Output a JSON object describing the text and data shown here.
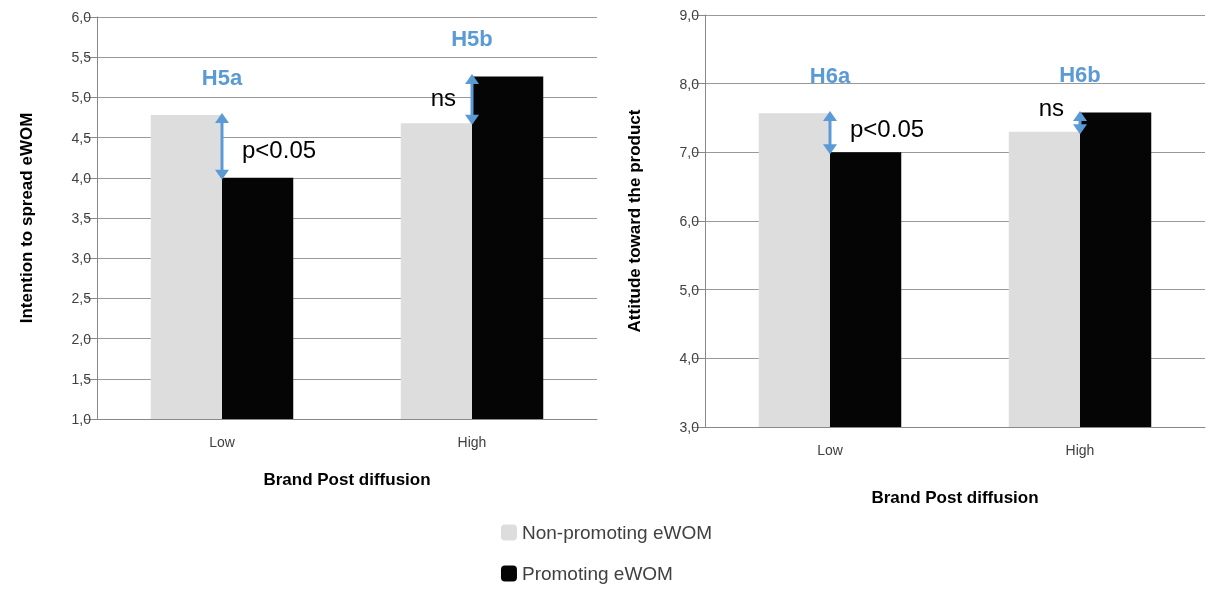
{
  "chart_data": [
    {
      "type": "bar",
      "xlabel": "Brand Post diffusion",
      "ylabel": "Intention to spread eWOM",
      "categories": [
        "Low",
        "High"
      ],
      "series": [
        {
          "name": "Non-promoting eWOM",
          "color": "#dddddd",
          "values": [
            4.78,
            4.68
          ]
        },
        {
          "name": "Promoting eWOM",
          "color": "#050505",
          "values": [
            4.0,
            5.26
          ]
        }
      ],
      "ylim": [
        1,
        6
      ],
      "yticks": [
        {
          "value": 1,
          "label": "1,0"
        },
        {
          "value": 1.5,
          "label": "1,5"
        },
        {
          "value": 2,
          "label": "2,0"
        },
        {
          "value": 2.5,
          "label": "2,5"
        },
        {
          "value": 3,
          "label": "3,0"
        },
        {
          "value": 3.5,
          "label": "3,5"
        },
        {
          "value": 4,
          "label": "4,0"
        },
        {
          "value": 4.5,
          "label": "4,5"
        },
        {
          "value": 5,
          "label": "5,0"
        },
        {
          "value": 5.5,
          "label": "5,5"
        },
        {
          "value": 6,
          "label": "6,0"
        }
      ],
      "grid": "y",
      "legend": "bottom",
      "annotations": [
        "H5a",
        {
          "text": "p<0.05",
          "x": "Low",
          "y": 4.35
        },
        "H5b",
        {
          "text": "ns",
          "x": "High",
          "y": 5.0
        }
      ]
    },
    {
      "type": "bar",
      "xlabel": "Brand Post diffusion",
      "ylabel": "Attitude toward the product",
      "categories": [
        "Low",
        "High"
      ],
      "series": [
        {
          "color": "#dddddd",
          "values": [
            7.57,
            7.3
          ]
        },
        {
          "color": "#050505",
          "values": [
            7.0,
            7.58
          ]
        }
      ],
      "ylim": [
        3,
        9
      ],
      "yticks": [
        {
          "value": 3,
          "label": "3,0"
        },
        {
          "value": 4,
          "label": "4,0"
        },
        {
          "value": 5,
          "label": "5,0"
        },
        {
          "value": 6,
          "label": "6,0"
        },
        {
          "value": 7,
          "label": "7,0"
        },
        {
          "value": 8,
          "label": "8,0"
        },
        {
          "value": 9,
          "label": "9,0"
        }
      ],
      "grid": "y",
      "annotations": [
        "H6a",
        {
          "text": "p<0.05",
          "x": "Low",
          "y": 7.35
        },
        "H6b",
        {
          "text": "ns",
          "x": "High",
          "y": 7.65
        }
      ]
    }
  ]
}
